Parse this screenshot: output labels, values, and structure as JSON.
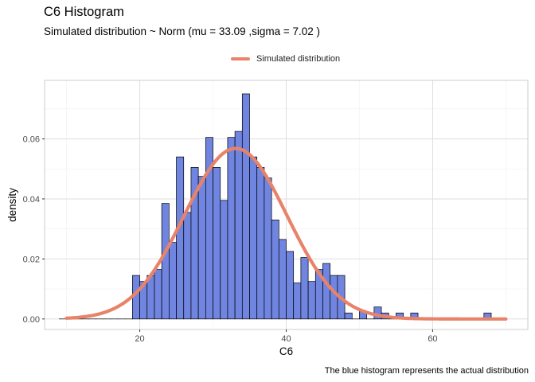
{
  "chart_data": {
    "type": "histogram",
    "title": "C6 Histogram",
    "subtitle": "Simulated distribution ~ Norm (mu = 33.09 ,sigma = 7.02 )",
    "xlabel": "C6",
    "ylabel": "density",
    "caption": "The blue histogram represents the actual distribution",
    "xlim": [
      7.0,
      73.0
    ],
    "ylim": [
      -0.0035,
      0.0795
    ],
    "x_ticks": [
      20,
      40,
      60
    ],
    "y_ticks": [
      0.0,
      0.02,
      0.04,
      0.06
    ],
    "y_tick_labels": [
      "0.00",
      "0.02",
      "0.04",
      "0.06"
    ],
    "grid": true,
    "legend_position": "top",
    "legend": [
      {
        "name": "Simulated distribution",
        "color": "#E8836A"
      }
    ],
    "bins": {
      "start": 9.0,
      "width": 1.0,
      "fill": "#7085E0",
      "edge": "#000000",
      "density": [
        0,
        0,
        0,
        0,
        0,
        0,
        0,
        0,
        0,
        0,
        0.0145,
        0.0125,
        0.0145,
        0.0165,
        0.0385,
        0.0255,
        0.054,
        0.0355,
        0.0505,
        0.0475,
        0.0605,
        0.0505,
        0.0395,
        0.0605,
        0.0625,
        0.075,
        0.054,
        0.0505,
        0.047,
        0.033,
        0.0265,
        0.0225,
        0.012,
        0.0205,
        0.0125,
        0.0165,
        0.0185,
        0.0145,
        0.0145,
        0.002,
        0,
        0.0025,
        0,
        0.004,
        0.002,
        0,
        0.002,
        0,
        0.002,
        0,
        0,
        0,
        0,
        0,
        0,
        0,
        0,
        0,
        0.002,
        0
      ]
    },
    "curve": {
      "name": "Simulated distribution",
      "distribution": "normal",
      "mu": 33.09,
      "sigma": 7.02,
      "x_range": [
        10,
        70
      ],
      "color": "#E8836A"
    }
  }
}
